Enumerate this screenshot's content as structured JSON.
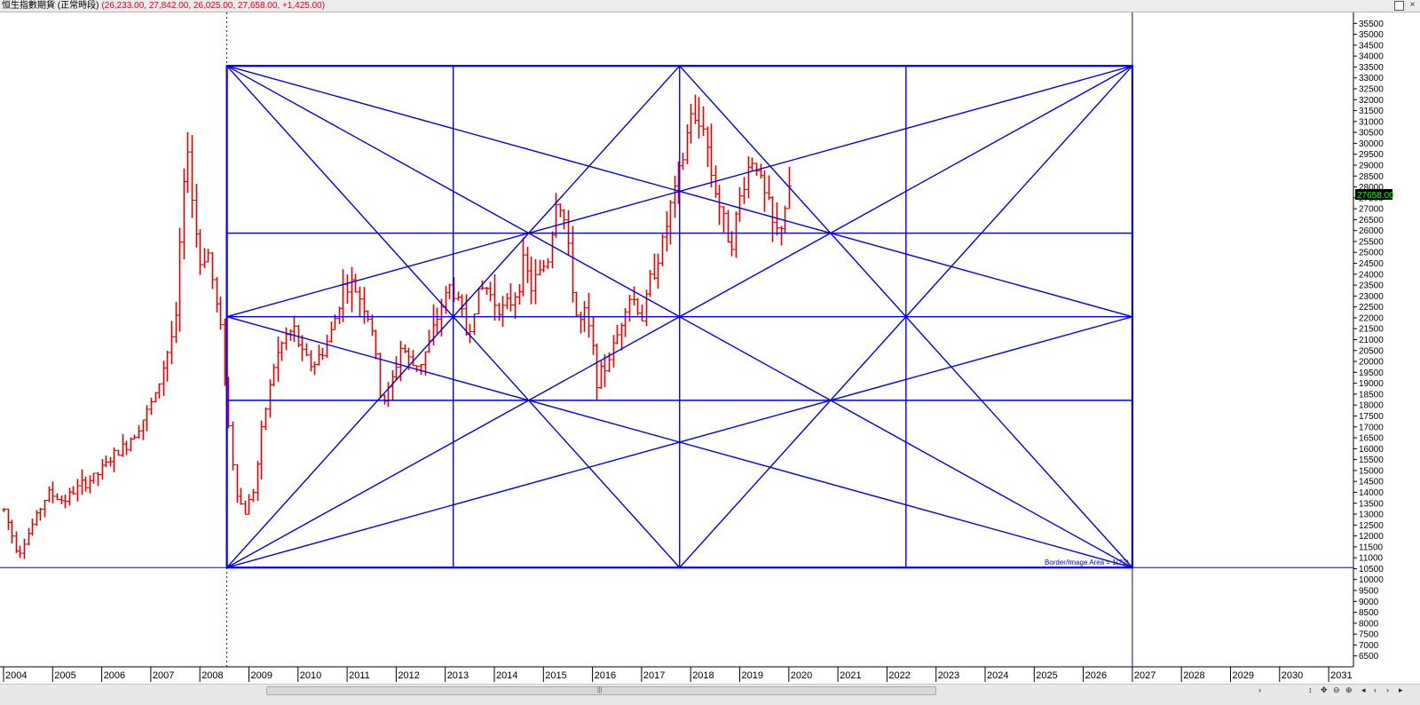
{
  "window": {
    "title": "恒生指數期貨 (正常時段)",
    "ohlc_text": "(26,233.00, 27,842.00, 26,025.00, 27,658.00, +1,425.00)"
  },
  "colors": {
    "bars": "#e00000",
    "gann": "#0000e6",
    "axis": "#000000",
    "price_tag_bg": "#000000",
    "price_tag_fg": "#00ff00"
  },
  "chart_data": {
    "type": "ohlc",
    "title": "恒生指數期貨 (正常時段)",
    "timeframe": "monthly",
    "ylim": [
      6000,
      36000
    ],
    "xlim": [
      2004.0,
      2031.6
    ],
    "y_ticks": [
      6500,
      7000,
      7500,
      8000,
      8500,
      9000,
      9500,
      10000,
      10500,
      11000,
      11500,
      12000,
      12500,
      13000,
      13500,
      14000,
      14500,
      15000,
      15500,
      16000,
      16500,
      17000,
      17500,
      18000,
      18500,
      19000,
      19500,
      20000,
      20500,
      21000,
      21500,
      22000,
      22500,
      23000,
      23500,
      24000,
      24500,
      25000,
      25500,
      26000,
      26500,
      27000,
      27500,
      28000,
      28500,
      29000,
      29500,
      30000,
      30500,
      31000,
      31500,
      32000,
      32500,
      33000,
      33500,
      34000,
      34500,
      35000,
      35500
    ],
    "x_ticks": [
      "2004",
      "2005",
      "2006",
      "2007",
      "2008",
      "2009",
      "2010",
      "2011",
      "2012",
      "2013",
      "2014",
      "2015",
      "2016",
      "2017",
      "2018",
      "2019",
      "2020",
      "2021",
      "2022",
      "2023",
      "2024",
      "2025",
      "2026",
      "2027",
      "2028",
      "2029",
      "2030",
      "2031"
    ],
    "last_price_label": "27658.00",
    "last_price": 27658,
    "ohlc_anchors": [
      [
        2004.0,
        13200
      ],
      [
        2004.2,
        11800
      ],
      [
        2004.3,
        11200
      ],
      [
        2004.6,
        12600
      ],
      [
        2004.9,
        14000
      ],
      [
        2005.2,
        13600
      ],
      [
        2005.5,
        14200
      ],
      [
        2005.9,
        14800
      ],
      [
        2006.2,
        15600
      ],
      [
        2006.5,
        16200
      ],
      [
        2006.9,
        17600
      ],
      [
        2007.1,
        18500
      ],
      [
        2007.3,
        20200
      ],
      [
        2007.5,
        21800
      ],
      [
        2007.6,
        26000
      ],
      [
        2007.75,
        30000
      ],
      [
        2007.85,
        27000
      ],
      [
        2008.0,
        24500
      ],
      [
        2008.15,
        25200
      ],
      [
        2008.3,
        23000
      ],
      [
        2008.45,
        21000
      ],
      [
        2008.6,
        16500
      ],
      [
        2008.75,
        14000
      ],
      [
        2008.9,
        13000
      ],
      [
        2009.1,
        14200
      ],
      [
        2009.3,
        17500
      ],
      [
        2009.5,
        19800
      ],
      [
        2009.7,
        21000
      ],
      [
        2009.9,
        21500
      ],
      [
        2010.1,
        20200
      ],
      [
        2010.3,
        19800
      ],
      [
        2010.5,
        20500
      ],
      [
        2010.7,
        21500
      ],
      [
        2010.9,
        23400
      ],
      [
        2011.1,
        23500
      ],
      [
        2011.3,
        22800
      ],
      [
        2011.5,
        21500
      ],
      [
        2011.7,
        18000
      ],
      [
        2011.9,
        19000
      ],
      [
        2012.1,
        20800
      ],
      [
        2012.3,
        19800
      ],
      [
        2012.5,
        20000
      ],
      [
        2012.7,
        21000
      ],
      [
        2012.9,
        22500
      ],
      [
        2013.1,
        23500
      ],
      [
        2013.3,
        22500
      ],
      [
        2013.45,
        21000
      ],
      [
        2013.6,
        22800
      ],
      [
        2013.8,
        23500
      ],
      [
        2013.95,
        22900
      ],
      [
        2014.2,
        22300
      ],
      [
        2014.4,
        23000
      ],
      [
        2014.6,
        24500
      ],
      [
        2014.75,
        23400
      ],
      [
        2014.9,
        24000
      ],
      [
        2015.1,
        24800
      ],
      [
        2015.25,
        27500
      ],
      [
        2015.4,
        26800
      ],
      [
        2015.55,
        24000
      ],
      [
        2015.7,
        21600
      ],
      [
        2015.85,
        22200
      ],
      [
        2016.0,
        20500
      ],
      [
        2016.1,
        19000
      ],
      [
        2016.3,
        20000
      ],
      [
        2016.5,
        21200
      ],
      [
        2016.7,
        23000
      ],
      [
        2016.85,
        22800
      ],
      [
        2017.0,
        22000
      ],
      [
        2017.2,
        24000
      ],
      [
        2017.4,
        25200
      ],
      [
        2017.55,
        26800
      ],
      [
        2017.7,
        28000
      ],
      [
        2017.85,
        29500
      ],
      [
        2018.0,
        31500
      ],
      [
        2018.1,
        30600
      ],
      [
        2018.25,
        31000
      ],
      [
        2018.4,
        28800
      ],
      [
        2018.55,
        27500
      ],
      [
        2018.7,
        26000
      ],
      [
        2018.85,
        25600
      ],
      [
        2019.0,
        27500
      ],
      [
        2019.15,
        28800
      ],
      [
        2019.3,
        29500
      ],
      [
        2019.45,
        27800
      ],
      [
        2019.6,
        27000
      ],
      [
        2019.7,
        25800
      ],
      [
        2019.8,
        26000
      ],
      [
        2019.9,
        27000
      ],
      [
        2020.0,
        27658
      ]
    ],
    "gann_box": {
      "x": [
        2008.55,
        2027.0
      ],
      "y": [
        10550,
        33550
      ]
    },
    "horizontal_line": 10550,
    "vertical_line": 2008.55,
    "annotation": "Border/Image Area = 1(22)"
  }
}
